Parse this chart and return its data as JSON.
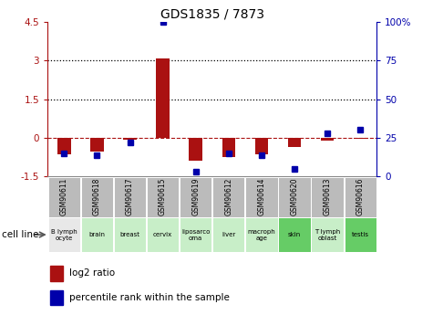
{
  "title": "GDS1835 / 7873",
  "samples": [
    "GSM90611",
    "GSM90618",
    "GSM90617",
    "GSM90615",
    "GSM90619",
    "GSM90612",
    "GSM90614",
    "GSM90620",
    "GSM90613",
    "GSM90616"
  ],
  "cell_lines": [
    "B lymph\nocyte",
    "brain",
    "breast",
    "cervix",
    "liposarco\noma",
    "liver",
    "macroph\nage",
    "skin",
    "T lymph\noblast",
    "testis"
  ],
  "cell_colors": [
    "#e8e8e8",
    "#c8eec8",
    "#c8eec8",
    "#c8eec8",
    "#c8eec8",
    "#c8eec8",
    "#c8eec8",
    "#66cc66",
    "#c8eec8",
    "#66cc66"
  ],
  "log2_ratio": [
    -0.65,
    -0.55,
    -0.08,
    3.1,
    -0.9,
    -0.75,
    -0.65,
    -0.35,
    -0.1,
    -0.05
  ],
  "percentile_rank": [
    15,
    14,
    22,
    100,
    3,
    15,
    14,
    5,
    28,
    30
  ],
  "ylim_left": [
    -1.5,
    4.5
  ],
  "ylim_right": [
    0,
    100
  ],
  "yticks_left": [
    -1.5,
    0,
    1.5,
    3.0,
    4.5
  ],
  "yticks_right": [
    0,
    25,
    50,
    75,
    100
  ],
  "hlines_dotted": [
    1.5,
    3.0
  ],
  "bar_color_red": "#aa1111",
  "bar_color_blue": "#0000aa",
  "dashed_line_color": "#aa1111",
  "legend_red_label": "log2 ratio",
  "legend_blue_label": "percentile rank within the sample",
  "cell_line_label": "cell line",
  "background_color": "#ffffff",
  "sample_box_color": "#bbbbbb"
}
